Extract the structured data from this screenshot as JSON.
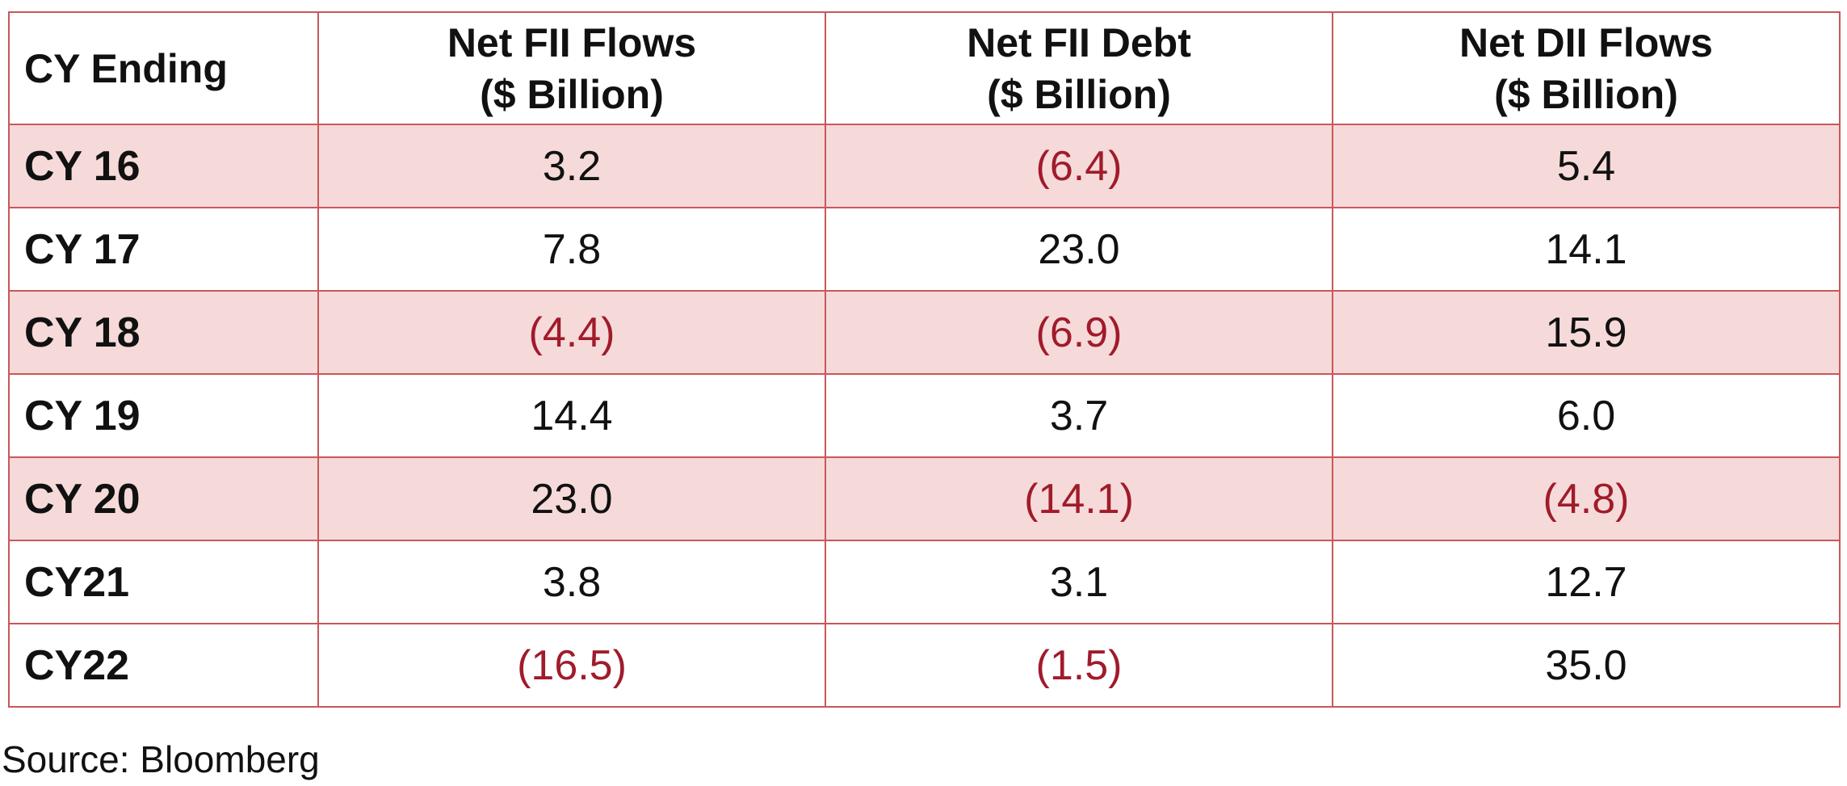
{
  "table": {
    "headers": [
      {
        "lines": [
          "CY Ending"
        ]
      },
      {
        "lines": [
          "Net FII Flows",
          "($ Billion)"
        ]
      },
      {
        "lines": [
          "Net FII Debt",
          "($ Billion)"
        ]
      },
      {
        "lines": [
          "Net DII Flows",
          "($ Billion)"
        ]
      }
    ],
    "rows": [
      {
        "label": "CY 16",
        "shaded": true,
        "values": [
          "3.2",
          "(6.4)",
          "5.4"
        ]
      },
      {
        "label": "CY 17",
        "shaded": false,
        "values": [
          "7.8",
          "23.0",
          "14.1"
        ]
      },
      {
        "label": "CY 18",
        "shaded": true,
        "values": [
          "(4.4)",
          "(6.9)",
          "15.9"
        ]
      },
      {
        "label": "CY 19",
        "shaded": false,
        "values": [
          "14.4",
          "3.7",
          "6.0"
        ]
      },
      {
        "label": "CY 20",
        "shaded": true,
        "values": [
          "23.0",
          "(14.1)",
          "(4.8)"
        ]
      },
      {
        "label": "CY21",
        "shaded": false,
        "values": [
          "3.8",
          "3.1",
          "12.7"
        ]
      },
      {
        "label": "CY22",
        "shaded": false,
        "values": [
          "(16.5)",
          "(1.5)",
          "35.0"
        ]
      }
    ]
  },
  "source": "Source: Bloomberg",
  "colors": {
    "border": "#c9575a",
    "shaded_row": "#f6dad9",
    "negative_text": "#a01b2b",
    "text": "#111111"
  }
}
